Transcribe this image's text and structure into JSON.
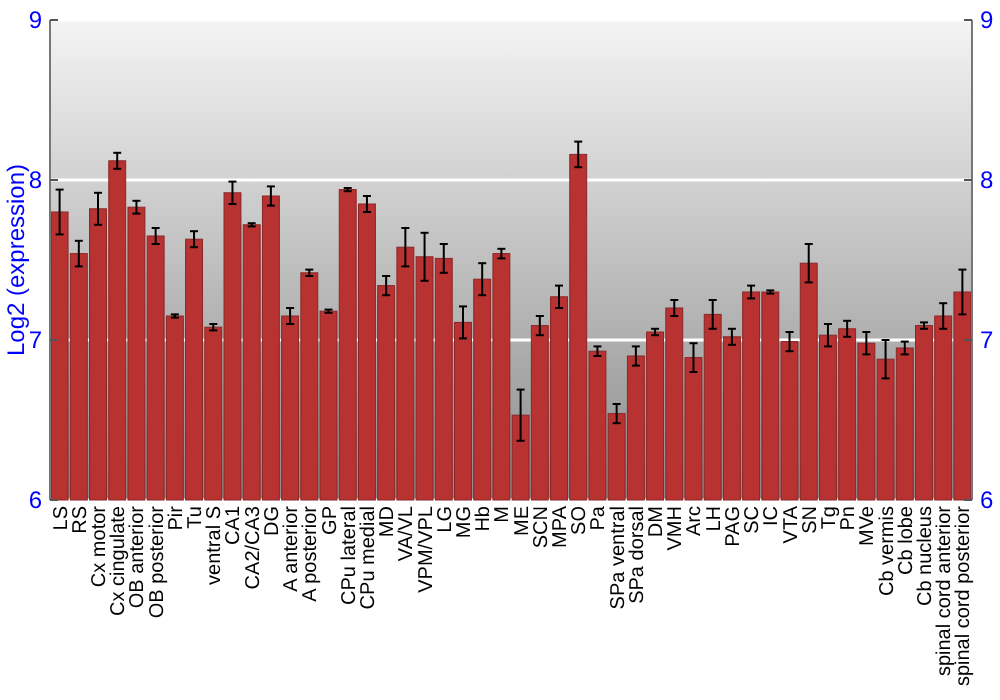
{
  "chart_data": {
    "type": "bar",
    "ylabel": "Log2 (expression)",
    "categories": [
      "LS",
      "RS",
      "Cx motor",
      "Cx cingulate",
      "OB anterior",
      "OB posterior",
      "Pir",
      "Tu",
      "ventral S",
      "CA1",
      "CA2/CA3",
      "DG",
      "A anterior",
      "A posterior",
      "GP",
      "CPu lateral",
      "CPu medial",
      "MD",
      "VA/VL",
      "VPM/VPL",
      "LG",
      "MG",
      "Hb",
      "M",
      "ME",
      "SCN",
      "MPA",
      "SO",
      "Pa",
      "SPa ventral",
      "SPa dorsal",
      "DM",
      "VMH",
      "Arc",
      "LH",
      "PAG",
      "SC",
      "IC",
      "VTA",
      "SN",
      "Tg",
      "Pn",
      "MVe",
      "Cb vermis",
      "Cb lobe",
      "Cb nucleus",
      "spinal cord anterior",
      "spinal cord posterior"
    ],
    "values": [
      7.8,
      7.54,
      7.82,
      8.12,
      7.83,
      7.65,
      7.15,
      7.63,
      7.08,
      7.92,
      7.72,
      7.9,
      7.15,
      7.42,
      7.18,
      7.94,
      7.85,
      7.34,
      7.58,
      7.52,
      7.51,
      7.11,
      7.38,
      7.54,
      6.53,
      7.09,
      7.27,
      8.16,
      6.93,
      6.54,
      6.9,
      7.05,
      7.2,
      6.89,
      7.16,
      7.02,
      7.3,
      7.3,
      6.99,
      7.48,
      7.03,
      7.07,
      6.98,
      6.88,
      6.95,
      7.09,
      7.15,
      7.3
    ],
    "errors": [
      0.14,
      0.08,
      0.1,
      0.05,
      0.04,
      0.05,
      0.01,
      0.05,
      0.02,
      0.07,
      0.01,
      0.06,
      0.05,
      0.02,
      0.01,
      0.01,
      0.05,
      0.06,
      0.12,
      0.15,
      0.09,
      0.1,
      0.1,
      0.03,
      0.16,
      0.06,
      0.07,
      0.08,
      0.03,
      0.06,
      0.06,
      0.02,
      0.05,
      0.09,
      0.09,
      0.05,
      0.04,
      0.01,
      0.06,
      0.12,
      0.07,
      0.05,
      0.07,
      0.12,
      0.04,
      0.02,
      0.08,
      0.14
    ],
    "color": "#b83232",
    "ylim": [
      6,
      9
    ],
    "yticks": [
      6,
      7,
      8,
      9
    ],
    "y2lim": [
      6,
      9
    ],
    "y2ticks": [
      6,
      7,
      8,
      9
    ],
    "grid": "y"
  }
}
